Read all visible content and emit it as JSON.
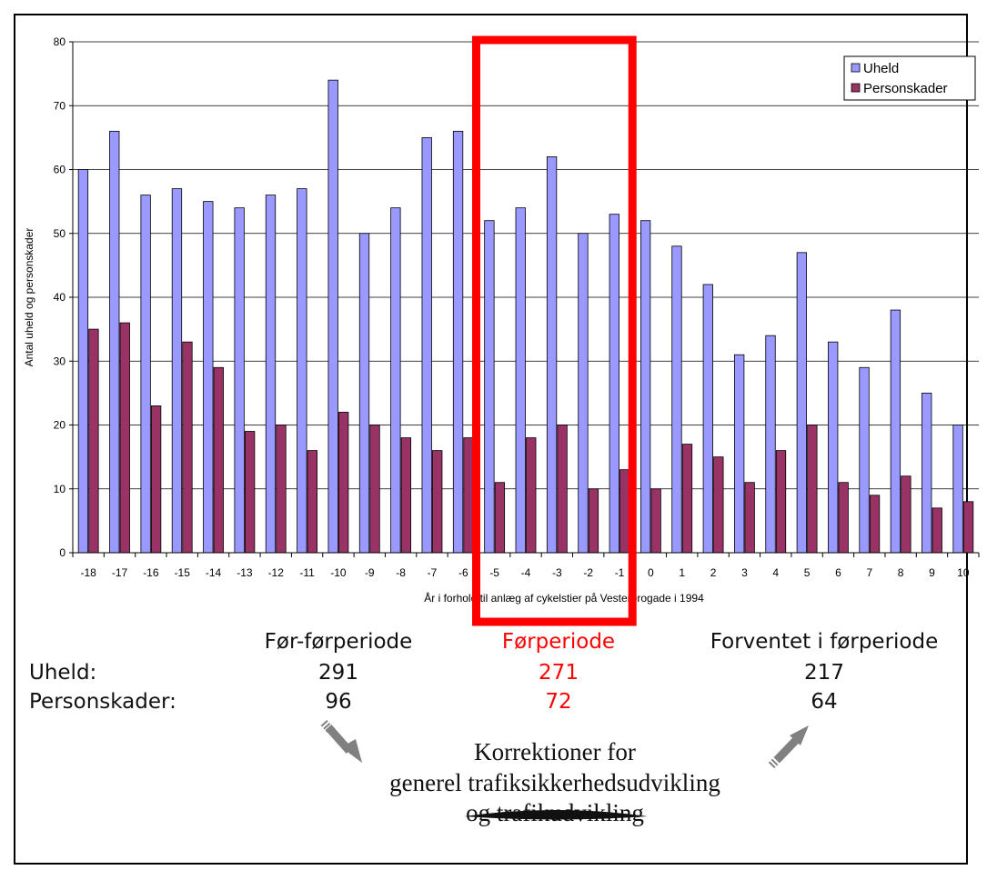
{
  "chart_data": {
    "type": "bar",
    "categories": [
      "-18",
      "-17",
      "-16",
      "-15",
      "-14",
      "-13",
      "-12",
      "-11",
      "-10",
      "-9",
      "-8",
      "-7",
      "-6",
      "-5",
      "-4",
      "-3",
      "-2",
      "-1",
      "0",
      "1",
      "2",
      "3",
      "4",
      "5",
      "6",
      "7",
      "8",
      "9",
      "10"
    ],
    "series": [
      {
        "name": "Uheld",
        "values": [
          60,
          66,
          56,
          57,
          55,
          54,
          56,
          57,
          74,
          50,
          54,
          65,
          66,
          52,
          54,
          62,
          50,
          53,
          52,
          48,
          42,
          31,
          34,
          47,
          33,
          29,
          38,
          25,
          20
        ]
      },
      {
        "name": "Personskader",
        "values": [
          35,
          36,
          23,
          33,
          29,
          19,
          20,
          16,
          22,
          20,
          18,
          16,
          18,
          11,
          18,
          20,
          10,
          13,
          10,
          17,
          15,
          11,
          16,
          20,
          11,
          9,
          12,
          7,
          8
        ]
      }
    ],
    "xlabel": "År i forhold til anlæg af cykelstier på Vesterbrogade i 1994",
    "ylabel": "Antal uheld og personskader",
    "ylim": [
      0,
      80
    ],
    "yticks": [
      0,
      10,
      20,
      30,
      40,
      50,
      60,
      70,
      80
    ],
    "grid": true,
    "legend": "top-right",
    "colors": {
      "Uheld": "#9999ff",
      "Personskader": "#993366",
      "highlight": "#ff0000"
    },
    "highlight_categories": [
      "-5",
      "-4",
      "-3",
      "-2",
      "-1"
    ]
  },
  "summary": {
    "col_headers": [
      "Før-førperiode",
      "Førperiode",
      "Forventet i førperiode"
    ],
    "rows": [
      {
        "label": "Uheld:",
        "values": [
          "291",
          "271",
          "217"
        ]
      },
      {
        "label": "Personskader:",
        "values": [
          "96",
          "72",
          "64"
        ]
      }
    ]
  },
  "note": {
    "lines": [
      "Korrektioner for",
      "generel trafiksikkerhedsudvikling",
      "og trafikudvikling"
    ]
  }
}
